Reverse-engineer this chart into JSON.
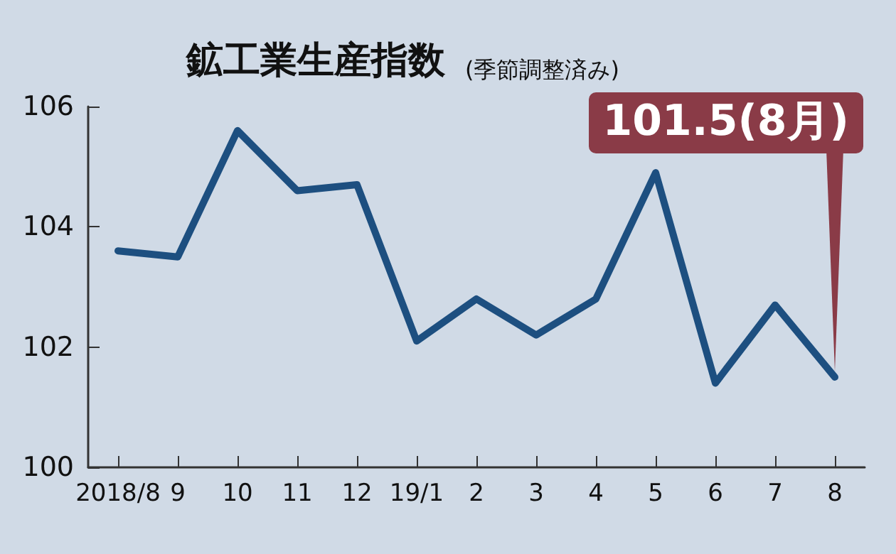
{
  "chart_data": {
    "type": "line",
    "title": "鉱工業生産指数",
    "subtitle": "(季節調整済み)",
    "categories": [
      "2018/8",
      "9",
      "10",
      "11",
      "12",
      "19/1",
      "2",
      "3",
      "4",
      "5",
      "6",
      "7",
      "8"
    ],
    "series": [
      {
        "color": "#1d4f80",
        "values": [
          103.6,
          103.5,
          105.6,
          104.6,
          104.7,
          102.1,
          102.8,
          102.2,
          102.8,
          104.9,
          101.4,
          102.7,
          101.5
        ]
      }
    ],
    "ylim": [
      100,
      106
    ],
    "yticks": [
      100,
      102,
      104,
      106
    ],
    "grid": false,
    "marker": "none",
    "line_style": "solid",
    "annotations": [
      {
        "text": "101.5(8月)",
        "x": "8",
        "y": 101.5
      }
    ]
  }
}
